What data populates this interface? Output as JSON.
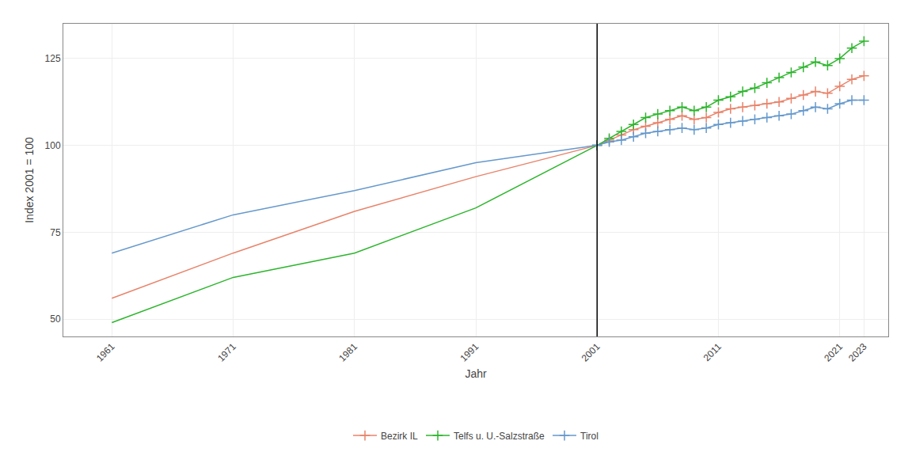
{
  "chart_data": {
    "type": "line",
    "title": "",
    "xlabel": "Jahr",
    "ylabel": "Index 2001 = 100",
    "xlim": [
      1957,
      2025
    ],
    "ylim": [
      45,
      135
    ],
    "xticks": [
      1961,
      1971,
      1981,
      1991,
      2001,
      2011,
      2021,
      2023
    ],
    "yticks": [
      50,
      75,
      100,
      125
    ],
    "grid": true,
    "legend": "bottom",
    "vline": {
      "x": 2001,
      "color": "#000000"
    },
    "series": [
      {
        "color": "#E8836A",
        "marker": "none",
        "x": [
          1961,
          1971,
          1981,
          1991,
          2001
        ],
        "values": [
          56,
          69,
          81,
          91,
          100
        ]
      },
      {
        "name": "Bezirk IL",
        "color": "#E8836A",
        "marker": "+",
        "x": [
          2001,
          2002,
          2003,
          2004,
          2005,
          2006,
          2007,
          2008,
          2009,
          2010,
          2011,
          2012,
          2013,
          2014,
          2015,
          2016,
          2017,
          2018,
          2019,
          2020,
          2021,
          2022,
          2023
        ],
        "values": [
          100,
          101.5,
          103,
          104.5,
          105.5,
          106.5,
          107.5,
          108.5,
          107.5,
          108,
          109.5,
          110.5,
          111,
          111.5,
          112,
          112.5,
          113.5,
          114.5,
          115.5,
          115,
          117,
          119,
          120
        ]
      },
      {
        "color": "#2DB52D",
        "marker": "none",
        "x": [
          1961,
          1971,
          1981,
          1991,
          2001
        ],
        "values": [
          49,
          62,
          69,
          82,
          100
        ]
      },
      {
        "name": "Telfs u. U.-Salzstraße",
        "color": "#2DB52D",
        "marker": "+",
        "x": [
          2001,
          2002,
          2003,
          2004,
          2005,
          2006,
          2007,
          2008,
          2009,
          2010,
          2011,
          2012,
          2013,
          2014,
          2015,
          2016,
          2017,
          2018,
          2019,
          2020,
          2021,
          2022,
          2023
        ],
        "values": [
          100,
          102,
          104,
          106,
          108,
          109,
          110,
          111,
          110,
          111,
          113,
          114,
          115.5,
          116.5,
          118,
          119.5,
          121,
          122.5,
          124,
          123,
          125,
          128,
          130
        ]
      },
      {
        "color": "#6699CC",
        "marker": "none",
        "x": [
          1961,
          1971,
          1981,
          1991,
          2001
        ],
        "values": [
          69,
          80,
          87,
          95,
          100
        ]
      },
      {
        "name": "Tirol",
        "color": "#6699CC",
        "marker": "+",
        "x": [
          2001,
          2002,
          2003,
          2004,
          2005,
          2006,
          2007,
          2008,
          2009,
          2010,
          2011,
          2012,
          2013,
          2014,
          2015,
          2016,
          2017,
          2018,
          2019,
          2020,
          2021,
          2022,
          2023
        ],
        "values": [
          100,
          101,
          101.5,
          102.5,
          103.5,
          104,
          104.5,
          105,
          104.5,
          105,
          106,
          106.5,
          107,
          107.5,
          108,
          108.5,
          109,
          110,
          111,
          110.5,
          112,
          113,
          113
        ]
      }
    ]
  }
}
